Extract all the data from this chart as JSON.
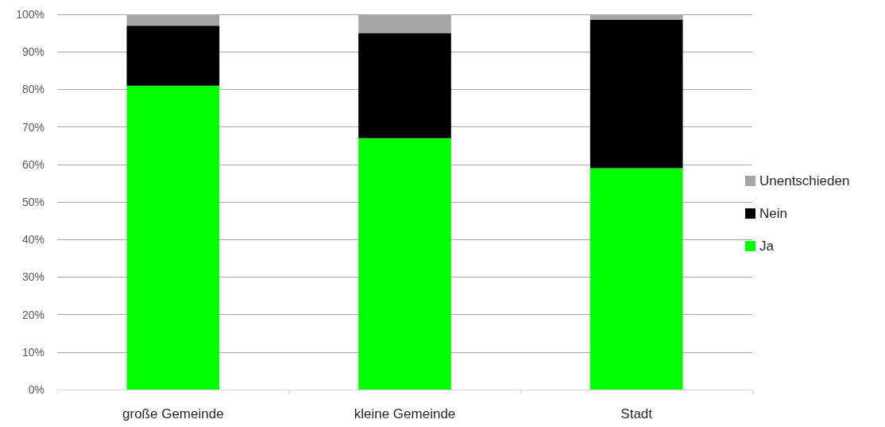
{
  "chart_data": {
    "type": "bar",
    "categories": [
      "große Gemeinde",
      "kleine Gemeinde",
      "Stadt"
    ],
    "series": [
      {
        "name": "Ja",
        "color": "#00ff00",
        "values": [
          81,
          67,
          59
        ]
      },
      {
        "name": "Nein",
        "color": "#000000",
        "values": [
          16,
          28,
          39.5
        ]
      },
      {
        "name": "Unentschieden",
        "color": "#a6a6a6",
        "values": [
          3,
          5,
          1.5
        ]
      }
    ],
    "stacked": true,
    "ylim": [
      0,
      100
    ],
    "yticks": [
      {
        "value": 0,
        "label": "0%"
      },
      {
        "value": 10,
        "label": "10%"
      },
      {
        "value": 20,
        "label": "20%"
      },
      {
        "value": 30,
        "label": "30%"
      },
      {
        "value": 40,
        "label": "40%"
      },
      {
        "value": 50,
        "label": "50%"
      },
      {
        "value": 60,
        "label": "60%"
      },
      {
        "value": 70,
        "label": "70%"
      },
      {
        "value": 80,
        "label": "80%"
      },
      {
        "value": 90,
        "label": "90%"
      },
      {
        "value": 100,
        "label": "100%"
      }
    ],
    "grid": "y",
    "legend": "right"
  }
}
